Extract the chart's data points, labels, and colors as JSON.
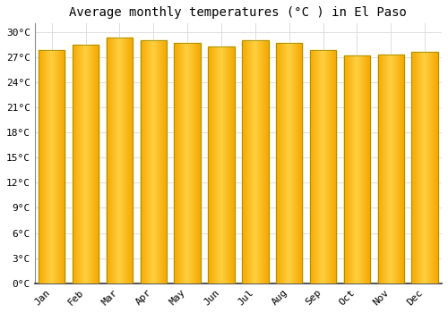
{
  "title": "Average monthly temperatures (°C ) in El Paso",
  "months": [
    "Jan",
    "Feb",
    "Mar",
    "Apr",
    "May",
    "Jun",
    "Jul",
    "Aug",
    "Sep",
    "Oct",
    "Nov",
    "Dec"
  ],
  "values": [
    27.8,
    28.5,
    29.3,
    29.0,
    28.7,
    28.3,
    29.0,
    28.7,
    27.8,
    27.2,
    27.3,
    27.6
  ],
  "bar_color_center": "#FFD040",
  "bar_color_edge": "#F5A800",
  "bar_border_color": "#888800",
  "background_color": "#FFFFFF",
  "grid_color": "#DDDDDD",
  "ylim": [
    0,
    31
  ],
  "yticks": [
    0,
    3,
    6,
    9,
    12,
    15,
    18,
    21,
    24,
    27,
    30
  ],
  "ytick_labels": [
    "0°C",
    "3°C",
    "6°C",
    "9°C",
    "12°C",
    "15°C",
    "18°C",
    "21°C",
    "24°C",
    "27°C",
    "30°C"
  ],
  "title_fontsize": 10,
  "tick_fontsize": 8,
  "bar_width": 0.78
}
